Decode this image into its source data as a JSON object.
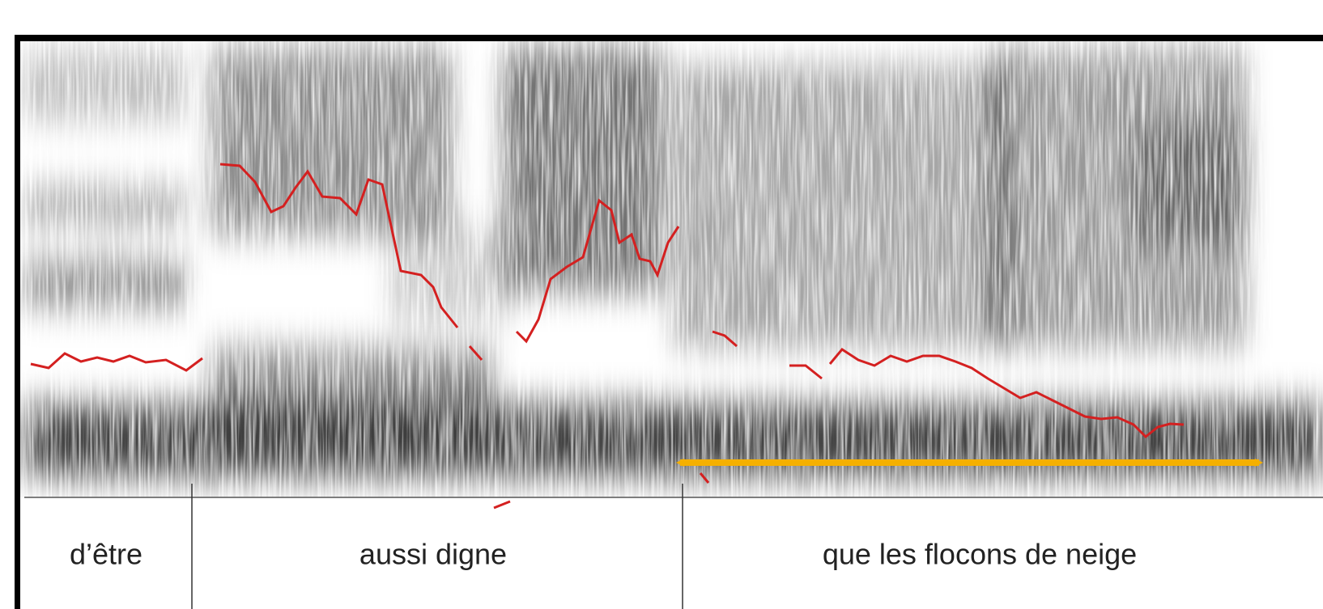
{
  "tier": {
    "segments": [
      "d’être",
      "aussi digne",
      "que les flocons de neige"
    ]
  }
}
